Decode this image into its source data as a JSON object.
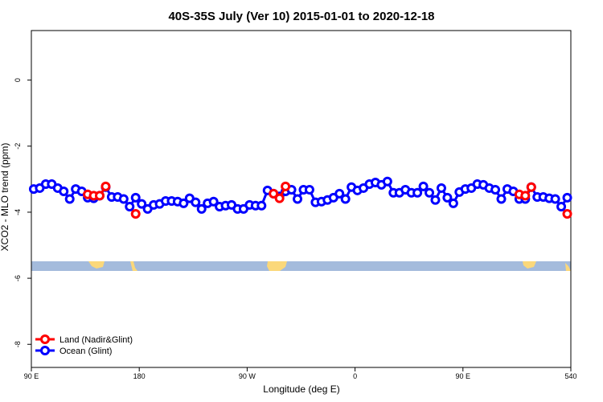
{
  "chart_data": {
    "type": "line",
    "title": "40S-35S July (Ver 10)   2015-01-01 to 2020-12-18",
    "x_label": "Longitude (deg E)",
    "y_label": "XCO2 - MLO trend (ppm)",
    "xlim": [
      90,
      540
    ],
    "ylim": [
      -8.7,
      1.5
    ],
    "xticks": [
      {
        "value": 90,
        "label": "90 E"
      },
      180,
      {
        "value": 270,
        "label": "90 W"
      },
      {
        "value": 360,
        "label": "0"
      },
      {
        "value": 450,
        "label": "90 E"
      },
      540
    ],
    "yticks": [
      0,
      -2,
      -4,
      -6,
      -8
    ],
    "legend": "bottom-left",
    "series": [
      {
        "name": "Land (Nadir&Glint)",
        "color": "#ff0000",
        "x": [
          137,
          142,
          147,
          152,
          160,
          177,
          185,
          292,
          297,
          302,
          400,
          497,
          502,
          507,
          520,
          537
        ],
        "values": [
          -3.46,
          -3.5,
          -3.5,
          -3.22,
          null,
          -4.05,
          null,
          -3.44,
          -3.58,
          -3.22,
          null,
          -3.46,
          -3.5,
          -3.24,
          null,
          -4.05
        ]
      },
      {
        "name": "Ocean (Glint)",
        "color": "#0000ff",
        "x": [
          92,
          97,
          102,
          107,
          112,
          117,
          122,
          127,
          132,
          137,
          142,
          147,
          152,
          157,
          162,
          167,
          172,
          177,
          182,
          187,
          192,
          197,
          202,
          207,
          212,
          217,
          222,
          227,
          232,
          237,
          242,
          247,
          252,
          257,
          262,
          267,
          272,
          277,
          282,
          287,
          292,
          297,
          302,
          307,
          312,
          317,
          322,
          327,
          332,
          337,
          342,
          347,
          352,
          357,
          362,
          367,
          372,
          377,
          382,
          387,
          392,
          397,
          402,
          407,
          412,
          417,
          422,
          427,
          432,
          437,
          442,
          447,
          452,
          457,
          462,
          467,
          472,
          477,
          482,
          487,
          492,
          497,
          502,
          507,
          512,
          517,
          522,
          527,
          532,
          537
        ],
        "values": [
          -3.3,
          -3.27,
          -3.15,
          -3.15,
          -3.27,
          -3.37,
          -3.6,
          -3.3,
          -3.37,
          -3.56,
          -3.58,
          -3.5,
          -3.24,
          -3.54,
          -3.54,
          -3.6,
          -3.83,
          -3.56,
          -3.75,
          -3.9,
          -3.78,
          -3.75,
          -3.66,
          -3.66,
          -3.68,
          -3.73,
          -3.58,
          -3.7,
          -3.9,
          -3.73,
          -3.68,
          -3.83,
          -3.8,
          -3.78,
          -3.9,
          -3.9,
          -3.78,
          -3.8,
          -3.8,
          -3.34,
          -3.44,
          -3.52,
          -3.37,
          -3.32,
          -3.6,
          -3.32,
          -3.32,
          -3.7,
          -3.68,
          -3.63,
          -3.56,
          -3.44,
          -3.6,
          -3.24,
          -3.34,
          -3.27,
          -3.15,
          -3.1,
          -3.17,
          -3.07,
          -3.41,
          -3.41,
          -3.32,
          -3.41,
          -3.41,
          -3.22,
          -3.41,
          -3.63,
          -3.27,
          -3.56,
          -3.73,
          -3.39,
          -3.3,
          -3.27,
          -3.15,
          -3.17,
          -3.27,
          -3.32,
          -3.6,
          -3.3,
          -3.37,
          -3.6,
          -3.6,
          -3.24,
          -3.54,
          -3.54,
          -3.58,
          -3.6,
          -3.83,
          -3.56
        ]
      }
    ]
  }
}
